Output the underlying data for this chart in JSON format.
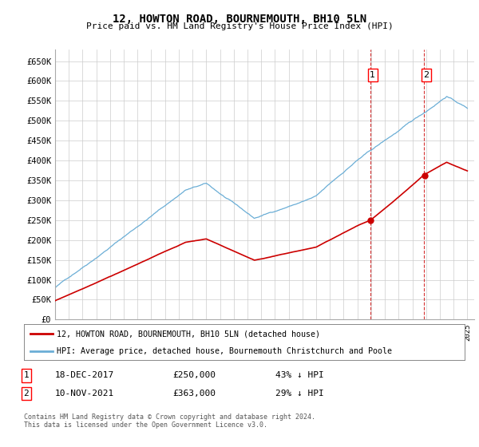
{
  "title": "12, HOWTON ROAD, BOURNEMOUTH, BH10 5LN",
  "subtitle": "Price paid vs. HM Land Registry's House Price Index (HPI)",
  "ylim": [
    0,
    680000
  ],
  "yticks": [
    0,
    50000,
    100000,
    150000,
    200000,
    250000,
    300000,
    350000,
    400000,
    450000,
    500000,
    550000,
    600000,
    650000
  ],
  "ytick_labels": [
    "£0",
    "£50K",
    "£100K",
    "£150K",
    "£200K",
    "£250K",
    "£300K",
    "£350K",
    "£400K",
    "£450K",
    "£500K",
    "£550K",
    "£600K",
    "£650K"
  ],
  "hpi_color": "#6baed6",
  "price_color": "#cc0000",
  "sale1_date_x": 2017.96,
  "sale1_price": 250000,
  "sale2_date_x": 2021.86,
  "sale2_price": 363000,
  "legend_label_price": "12, HOWTON ROAD, BOURNEMOUTH, BH10 5LN (detached house)",
  "legend_label_hpi": "HPI: Average price, detached house, Bournemouth Christchurch and Poole",
  "info1_num": "1",
  "info1_date": "18-DEC-2017",
  "info1_price": "£250,000",
  "info1_pct": "43% ↓ HPI",
  "info2_num": "2",
  "info2_date": "10-NOV-2021",
  "info2_price": "£363,000",
  "info2_pct": "29% ↓ HPI",
  "footer": "Contains HM Land Registry data © Crown copyright and database right 2024.\nThis data is licensed under the Open Government Licence v3.0.",
  "bg_color": "#ffffff",
  "plot_bg_color": "#ffffff",
  "grid_color": "#cccccc",
  "xmin": 1995,
  "xmax": 2025.5
}
